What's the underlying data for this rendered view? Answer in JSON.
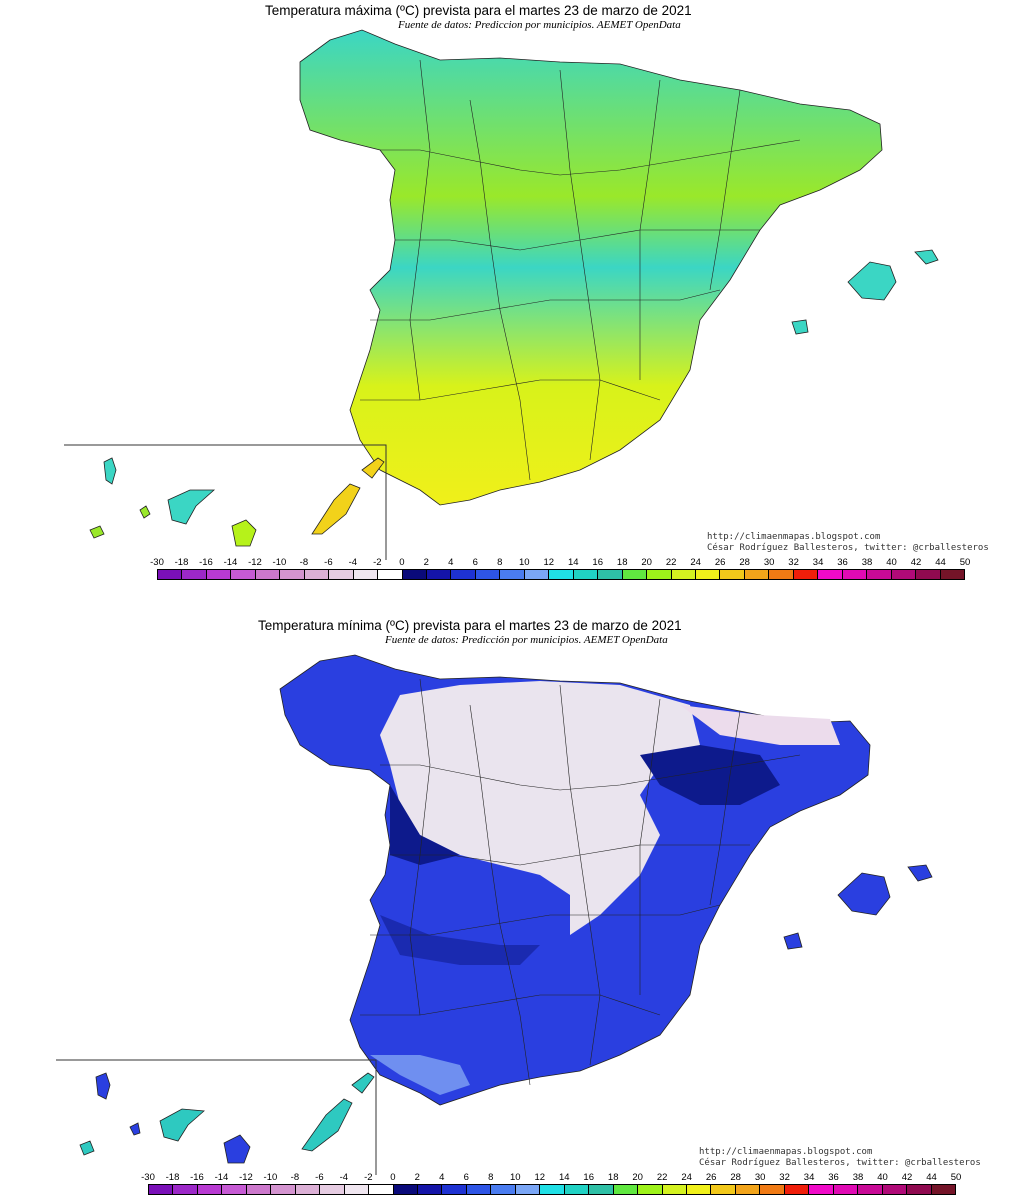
{
  "maps": [
    {
      "title": "Temperatura máxima (ºC) prevista para el martes 23 de marzo de 2021",
      "subtitle": "Fuente de datos: Prediccion por municipios. AEMET OpenData",
      "credit_url": "http://climaenmapas.blogspot.com",
      "credit_author": "César Rodríguez Ballesteros, twitter: @crballesteros",
      "palette": {
        "land_primary": "#b6f21a",
        "land_secondary": "#3bd6c4",
        "land_warm": "#f2f21a",
        "land_hot": "#f5d21a",
        "canary_fill": "#f2e21a"
      }
    },
    {
      "title": "Temperatura mínima (ºC) prevista para el martes 23 de marzo de 2021",
      "subtitle": "Fuente de datos: Predicción por municipios. AEMET OpenData",
      "credit_url": "http://climaenmapas.blogspot.com",
      "credit_author": "César Rodríguez Ballesteros, twitter: @crballesteros",
      "palette": {
        "land_primary": "#2a3fe0",
        "land_secondary": "#eae4ee",
        "land_warm": "#0d1a8c",
        "land_hot": "#6f8ff0",
        "canary_fill": "#2ec9c0"
      }
    }
  ],
  "legend": {
    "ticks": [
      "-30",
      "-18",
      "-16",
      "-14",
      "-12",
      "-10",
      "-8",
      "-6",
      "-4",
      "-2",
      "0",
      "2",
      "4",
      "6",
      "8",
      "10",
      "12",
      "14",
      "16",
      "18",
      "20",
      "22",
      "24",
      "26",
      "28",
      "30",
      "32",
      "34",
      "36",
      "38",
      "40",
      "42",
      "44",
      "50"
    ],
    "colors": [
      "#7a10b8",
      "#9c28c8",
      "#b83ad2",
      "#c65ad4",
      "#cc78cc",
      "#d494d0",
      "#dcb0d6",
      "#e6cce2",
      "#f0e6f0",
      "#ffffff",
      "#0a0a7a",
      "#1414a8",
      "#1e32d2",
      "#2e55e6",
      "#4a7cf0",
      "#7aa6f6",
      "#20e0e6",
      "#20d2c4",
      "#2ec0a6",
      "#60e840",
      "#9ef21a",
      "#d4f220",
      "#f0f01a",
      "#f2c81a",
      "#f2a41a",
      "#f07a14",
      "#f01e0a",
      "#f00ac8",
      "#e00ab4",
      "#c80a96",
      "#b00a78",
      "#900a50",
      "#741428"
    ]
  }
}
